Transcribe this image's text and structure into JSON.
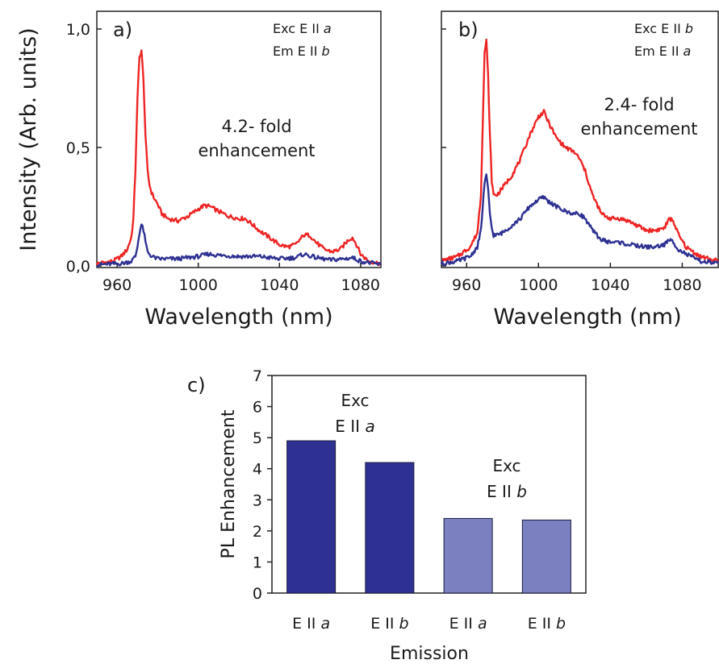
{
  "colors": {
    "red": "#ee2424",
    "blue": "#2e3192",
    "bar_dark": "#2e3192",
    "bar_light": "#7b80c0"
  },
  "shared": {
    "ylabel": "Intensity (Arb. units)"
  },
  "panels": {
    "a": {
      "label": "a)",
      "ann1_pre": "Exc E II ",
      "ann1_ital": "a",
      "ann2_pre": "Em E II ",
      "ann2_ital": "b",
      "enh1": "4.2- fold",
      "enh2": "enhancement",
      "xlabel": "Wavelength (nm)"
    },
    "b": {
      "label": "b)",
      "ann1_pre": "Exc E II ",
      "ann1_ital": "b",
      "ann2_pre": "Em E II ",
      "ann2_ital": "a",
      "enh1": "2.4- fold",
      "enh2": "enhancement",
      "xlabel": "Wavelength (nm)"
    },
    "c": {
      "label": "c)",
      "ylabel": "PL Enhancement",
      "xlabel": "Emission",
      "exc1_line1": "Exc",
      "exc1_pre": "E II ",
      "exc1_ital": "a",
      "exc2_line1": "Exc",
      "exc2_pre": "E II ",
      "exc2_ital": "b",
      "cat_pre": "E II ",
      "cat_itals": [
        "a",
        "b",
        "a",
        "b"
      ]
    }
  },
  "chart_data": [
    {
      "type": "line",
      "panel": "a",
      "xlim": [
        950,
        1090
      ],
      "ylim": [
        0,
        1.0
      ],
      "x_ticks": [
        960,
        1000,
        1040,
        1080
      ],
      "y_ticks": [
        "0,0",
        "0,5",
        "1,0"
      ],
      "series": [
        {
          "color": "red",
          "x": [
            950,
            958,
            962,
            965,
            967,
            968,
            969,
            970,
            971,
            972,
            973,
            974,
            975,
            976,
            977,
            978,
            980,
            982,
            985,
            990,
            995,
            1000,
            1003,
            1006,
            1010,
            1015,
            1020,
            1023,
            1026,
            1030,
            1035,
            1040,
            1044,
            1048,
            1050,
            1052,
            1055,
            1058,
            1062,
            1066,
            1070,
            1072,
            1074,
            1076,
            1078,
            1080,
            1084,
            1090
          ],
          "y": [
            0.01,
            0.02,
            0.04,
            0.07,
            0.12,
            0.2,
            0.4,
            0.7,
            0.88,
            0.91,
            0.78,
            0.55,
            0.4,
            0.34,
            0.31,
            0.29,
            0.26,
            0.22,
            0.2,
            0.19,
            0.21,
            0.24,
            0.255,
            0.25,
            0.23,
            0.21,
            0.2,
            0.2,
            0.18,
            0.15,
            0.12,
            0.09,
            0.08,
            0.09,
            0.11,
            0.13,
            0.13,
            0.1,
            0.07,
            0.06,
            0.07,
            0.09,
            0.11,
            0.12,
            0.09,
            0.05,
            0.02,
            0.01
          ]
        },
        {
          "color": "blue",
          "x": [
            950,
            962,
            967,
            969,
            970,
            971,
            972,
            973,
            974,
            975,
            977,
            980,
            990,
            1000,
            1005,
            1010,
            1020,
            1030,
            1040,
            1048,
            1052,
            1058,
            1065,
            1072,
            1076,
            1080,
            1090
          ],
          "y": [
            0.005,
            0.01,
            0.02,
            0.04,
            0.08,
            0.14,
            0.175,
            0.15,
            0.1,
            0.06,
            0.04,
            0.03,
            0.03,
            0.04,
            0.05,
            0.045,
            0.04,
            0.04,
            0.03,
            0.035,
            0.05,
            0.035,
            0.025,
            0.03,
            0.035,
            0.02,
            0.005
          ]
        }
      ]
    },
    {
      "type": "line",
      "panel": "b",
      "xlim": [
        946,
        1100
      ],
      "ylim": [
        0,
        1.0
      ],
      "x_ticks": [
        960,
        1000,
        1040,
        1080
      ],
      "series": [
        {
          "color": "red",
          "x": [
            946,
            955,
            962,
            966,
            968,
            969,
            970,
            971,
            972,
            973,
            974,
            975,
            977,
            980,
            985,
            990,
            995,
            1000,
            1003,
            1006,
            1010,
            1015,
            1020,
            1023,
            1026,
            1030,
            1035,
            1040,
            1045,
            1050,
            1055,
            1060,
            1065,
            1070,
            1073,
            1075,
            1078,
            1082,
            1090,
            1100
          ],
          "y": [
            0.02,
            0.04,
            0.08,
            0.14,
            0.3,
            0.6,
            0.9,
            0.95,
            0.8,
            0.55,
            0.36,
            0.3,
            0.3,
            0.33,
            0.38,
            0.45,
            0.55,
            0.63,
            0.65,
            0.6,
            0.54,
            0.5,
            0.48,
            0.45,
            0.4,
            0.3,
            0.22,
            0.2,
            0.2,
            0.19,
            0.17,
            0.15,
            0.15,
            0.16,
            0.2,
            0.19,
            0.13,
            0.08,
            0.04,
            0.02
          ]
        },
        {
          "color": "blue",
          "x": [
            946,
            955,
            962,
            966,
            968,
            969,
            970,
            971,
            972,
            973,
            974,
            975,
            977,
            980,
            985,
            990,
            995,
            1000,
            1003,
            1006,
            1010,
            1015,
            1020,
            1023,
            1026,
            1030,
            1035,
            1040,
            1045,
            1050,
            1055,
            1060,
            1065,
            1070,
            1073,
            1075,
            1078,
            1082,
            1090,
            1100
          ],
          "y": [
            0.01,
            0.02,
            0.04,
            0.08,
            0.15,
            0.25,
            0.35,
            0.38,
            0.32,
            0.22,
            0.16,
            0.13,
            0.13,
            0.14,
            0.17,
            0.2,
            0.25,
            0.28,
            0.29,
            0.27,
            0.25,
            0.23,
            0.22,
            0.22,
            0.2,
            0.15,
            0.11,
            0.1,
            0.1,
            0.09,
            0.085,
            0.08,
            0.08,
            0.09,
            0.11,
            0.1,
            0.07,
            0.05,
            0.02,
            0.01
          ]
        }
      ]
    },
    {
      "type": "bar",
      "panel": "c",
      "ylim": [
        0,
        7
      ],
      "y_ticks": [
        0,
        1,
        2,
        3,
        4,
        5,
        6,
        7
      ],
      "values": [
        4.9,
        4.2,
        2.4,
        2.35
      ],
      "colors": [
        "bar_dark",
        "bar_dark",
        "bar_light",
        "bar_light"
      ]
    }
  ]
}
